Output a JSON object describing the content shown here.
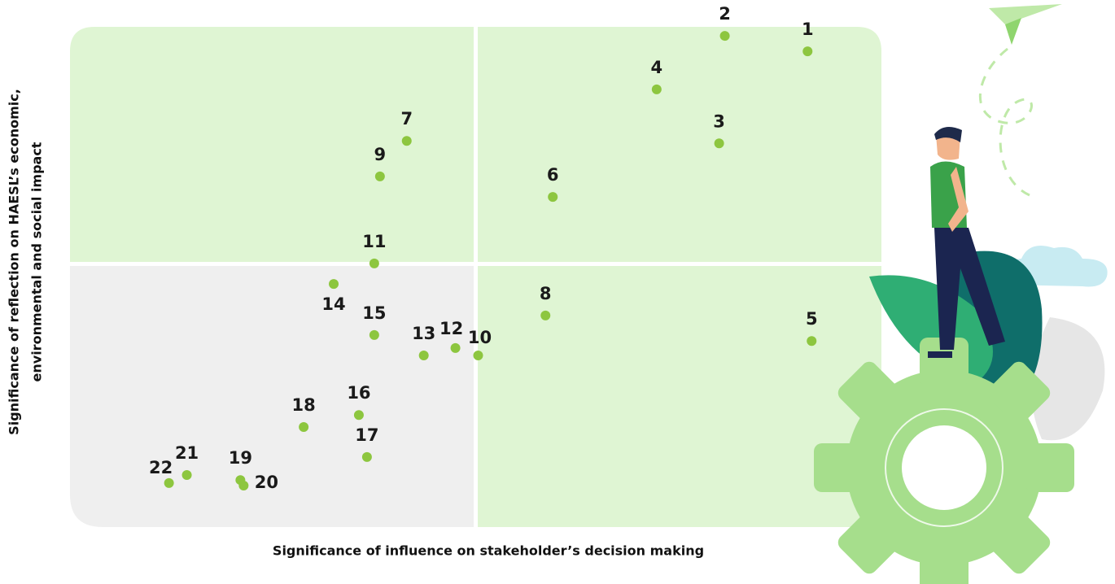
{
  "chart_data": {
    "type": "scatter",
    "x_label": "Significance of influence on stakeholder’s decision making",
    "y_label": [
      "Significance of reflection on HAESL’s economic,",
      "environmental and social impact"
    ],
    "color": "#8dc63f",
    "xlim": [
      0,
      100
    ],
    "ylim": [
      0,
      100
    ],
    "labels": [
      "1",
      "2",
      "3",
      "4",
      "5",
      "6",
      "7",
      "8",
      "9",
      "10",
      "11",
      "12",
      "13",
      "14",
      "15",
      "16",
      "17",
      "18",
      "19",
      "20",
      "21",
      "22"
    ],
    "x": [
      90.9,
      80.7,
      80.0,
      72.3,
      91.4,
      59.5,
      41.5,
      58.6,
      38.2,
      50.3,
      37.5,
      47.5,
      43.6,
      32.5,
      37.5,
      35.6,
      36.6,
      28.8,
      21.0,
      21.4,
      14.4,
      12.2
    ],
    "y": [
      95.1,
      98.2,
      76.7,
      87.5,
      37.2,
      66.0,
      77.2,
      42.3,
      70.1,
      34.3,
      52.7,
      35.8,
      34.3,
      48.6,
      38.4,
      22.4,
      14.0,
      20.0,
      9.4,
      8.3,
      10.4,
      8.8
    ]
  }
}
